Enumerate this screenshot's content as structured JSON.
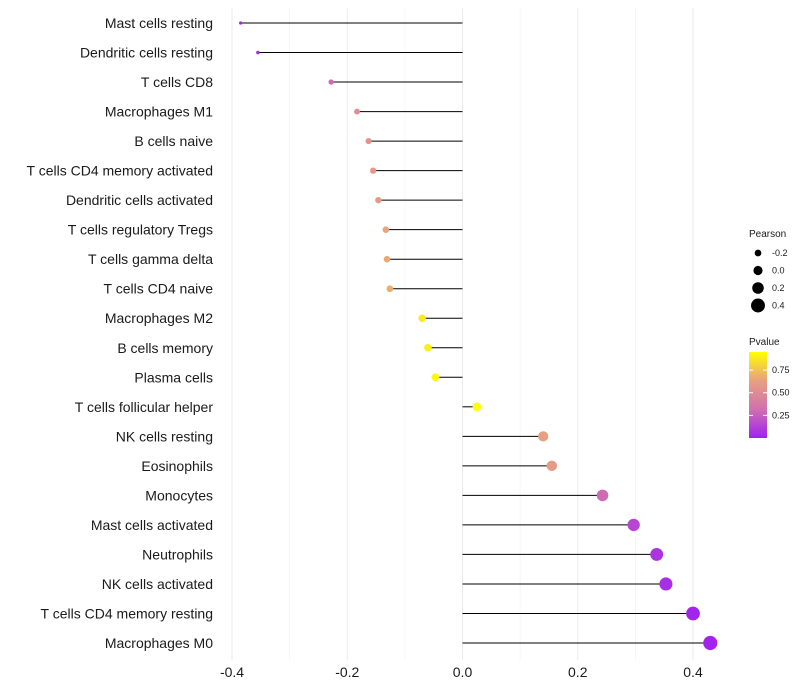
{
  "chart_data": {
    "type": "lollipop",
    "title": "",
    "xlabel": "",
    "ylabel": "",
    "xlim": [
      -0.4,
      0.46
    ],
    "x_ticks": [
      -0.4,
      -0.2,
      0.0,
      0.2,
      0.4
    ],
    "x_tick_labels": [
      "-0.4",
      "-0.2",
      "0.0",
      "0.2",
      "0.4"
    ],
    "grid": true,
    "categories": [
      "Mast cells resting",
      "Dendritic cells resting",
      "T cells CD8",
      "Macrophages M1",
      "B cells naive",
      "T cells CD4 memory activated",
      "Dendritic cells activated",
      "T cells regulatory  Tregs",
      "T cells gamma delta",
      "T cells CD4 naive",
      "Macrophages M2",
      "B cells memory",
      "Plasma cells",
      "T cells follicular helper",
      "NK cells resting",
      "Eosinophils",
      "Monocytes",
      "Mast cells activated",
      "Neutrophils",
      "NK cells activated",
      "T cells CD4 memory resting",
      "Macrophages M0"
    ],
    "pearson": [
      -0.385,
      -0.355,
      -0.228,
      -0.183,
      -0.163,
      -0.155,
      -0.146,
      -0.133,
      -0.131,
      -0.126,
      -0.07,
      -0.06,
      -0.047,
      0.025,
      0.14,
      0.155,
      0.243,
      0.297,
      0.337,
      0.353,
      0.4,
      0.43
    ],
    "pvalue": [
      0.02,
      0.04,
      0.3,
      0.5,
      0.55,
      0.58,
      0.6,
      0.65,
      0.66,
      0.68,
      0.88,
      0.9,
      0.93,
      0.97,
      0.62,
      0.6,
      0.3,
      0.15,
      0.08,
      0.06,
      0.02,
      0.01
    ],
    "legends": {
      "size": {
        "title": "Pearson",
        "values": [
          -0.2,
          0.0,
          0.2,
          0.4
        ],
        "labels": [
          "-0.2",
          "0.0",
          "0.2",
          "0.4"
        ],
        "position": "right"
      },
      "color": {
        "title": "Pvalue",
        "range": [
          0.0,
          0.95
        ],
        "breaks": [
          0.75,
          0.5,
          0.25
        ],
        "labels": [
          "0.75",
          "0.50",
          "0.25"
        ],
        "colors": [
          "#a020f0",
          "#d070b0",
          "#e8a080",
          "#ffff00"
        ],
        "position": "right"
      }
    }
  }
}
